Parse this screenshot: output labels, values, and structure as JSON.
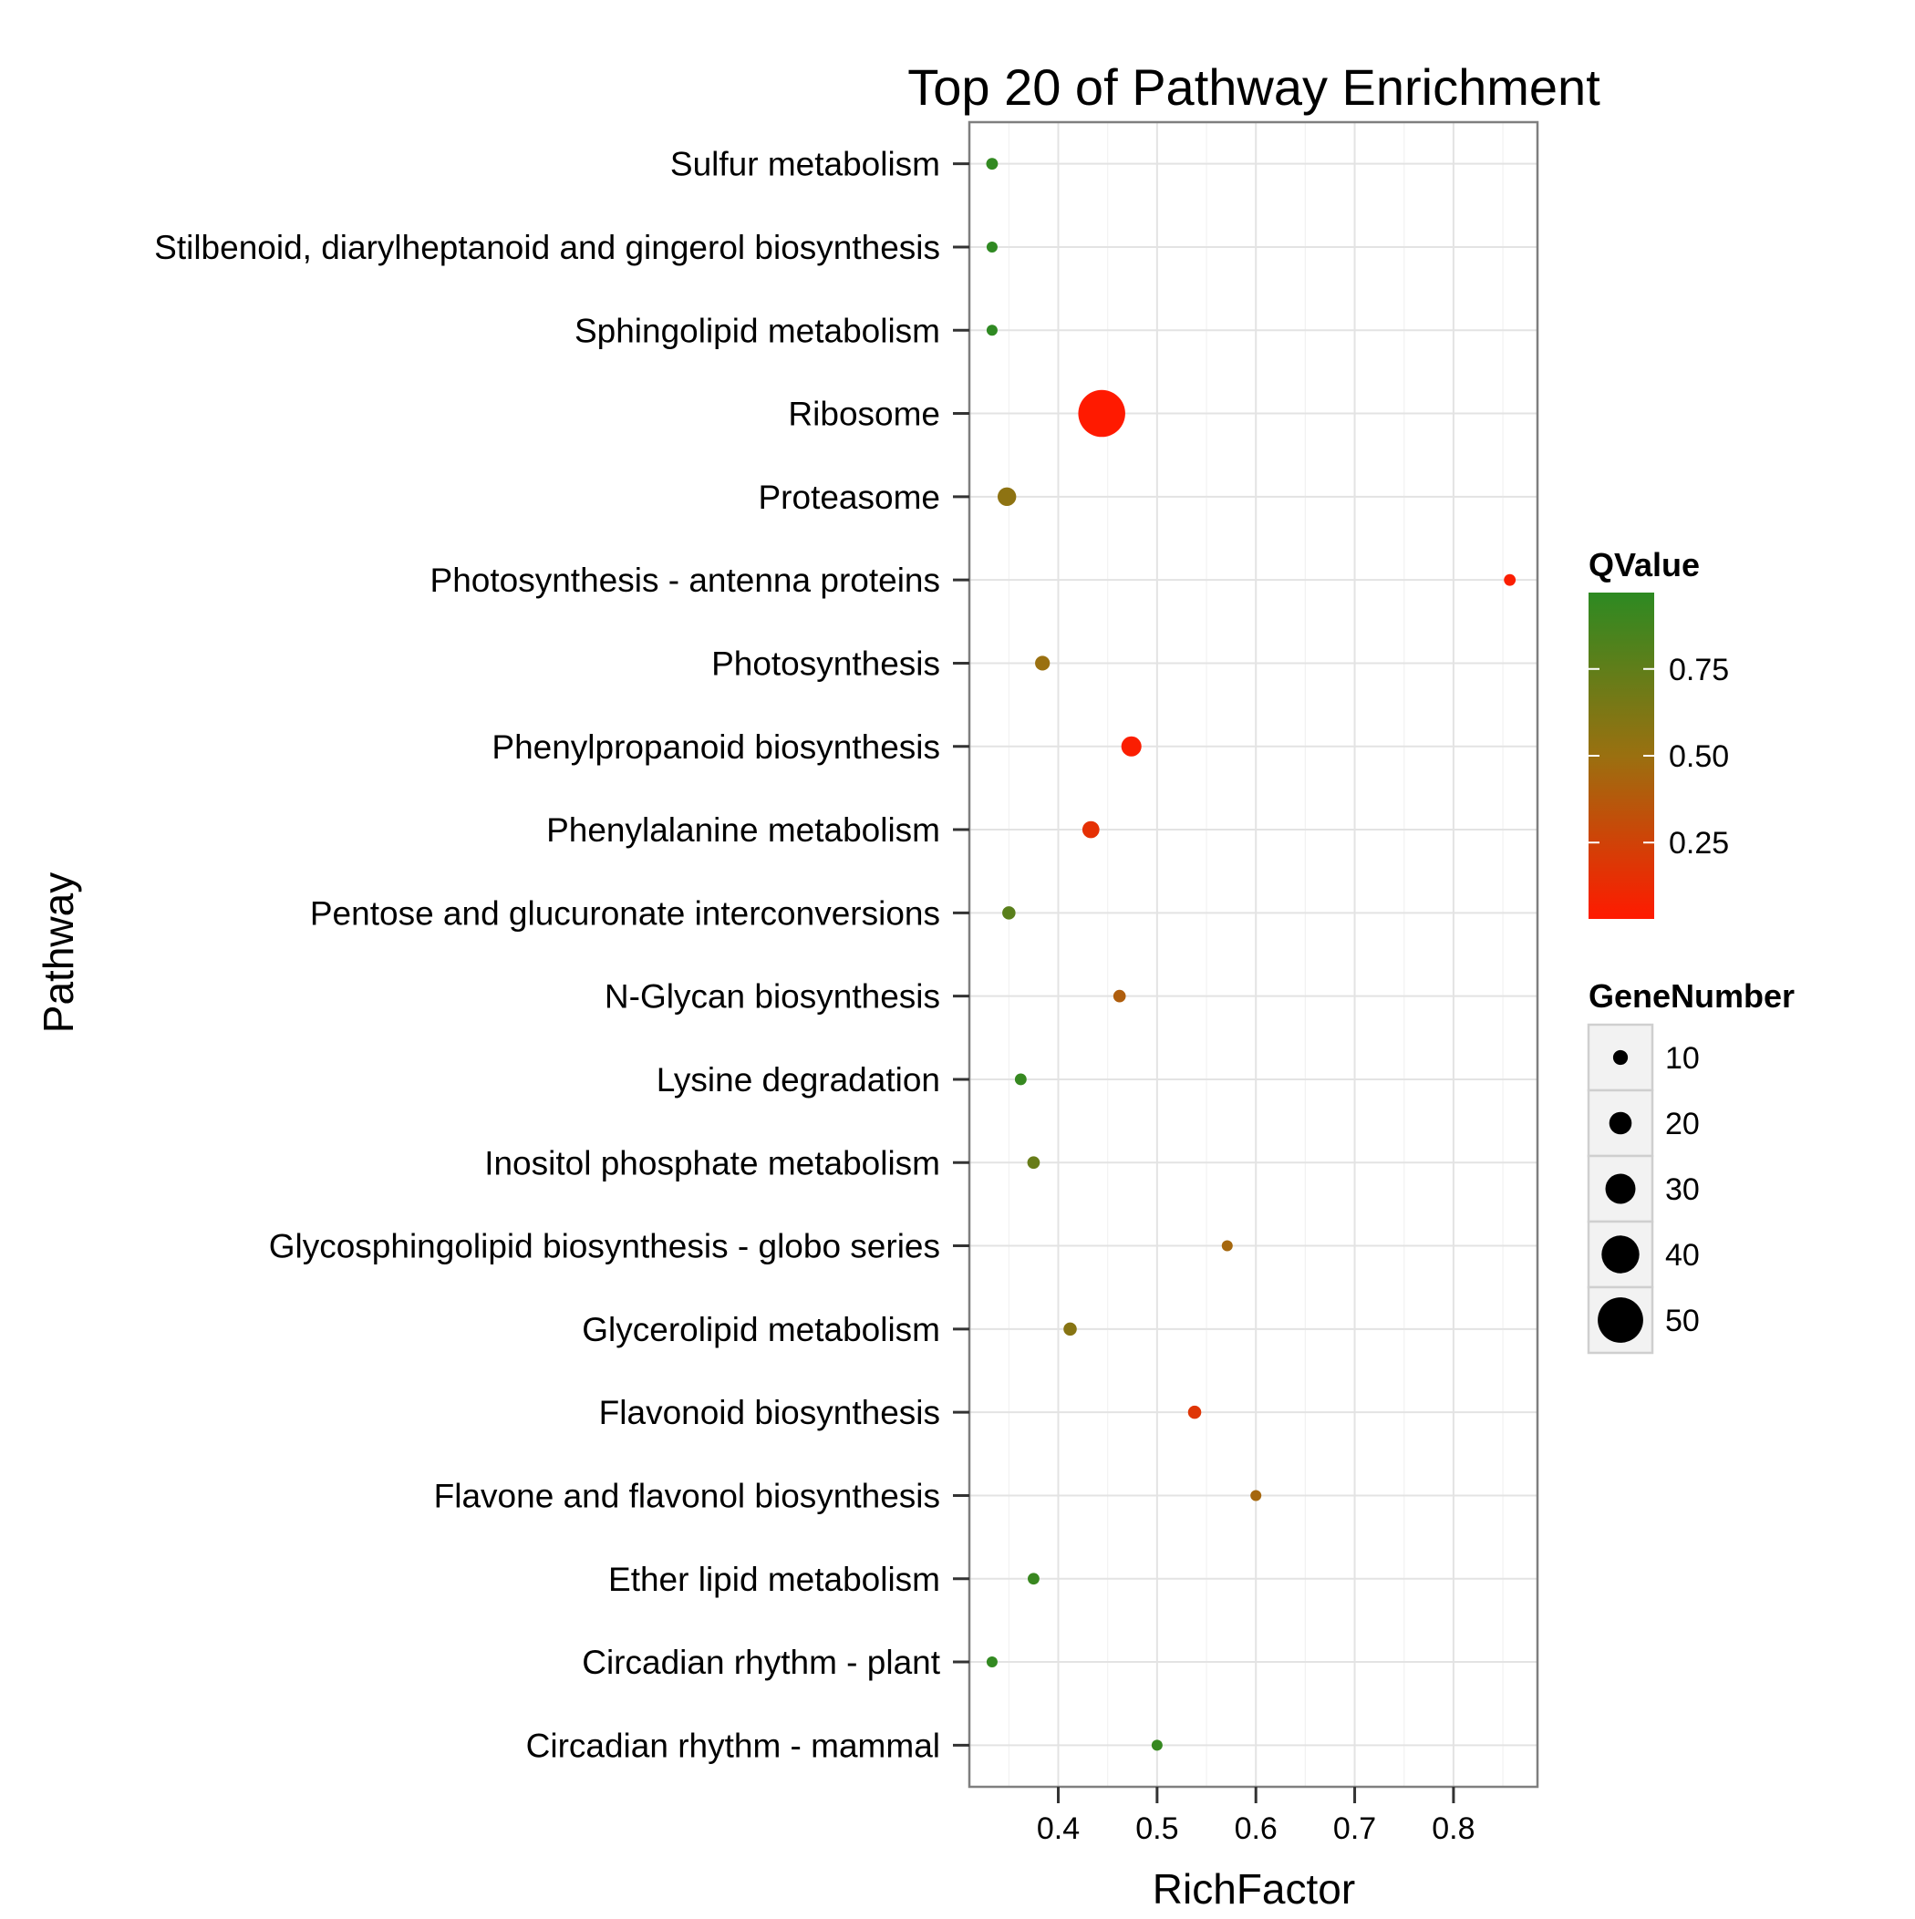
{
  "chart_data": {
    "type": "scatter",
    "title": "Top 20 of Pathway Enrichment",
    "xlabel": "RichFactor",
    "ylabel": "Pathway",
    "xlim": [
      0.31,
      0.885
    ],
    "xticks": [
      "0.4",
      "0.5",
      "0.6",
      "0.7",
      "0.8"
    ],
    "grid": true,
    "legend_position": "right",
    "color_legend": {
      "title": "QValue",
      "range": [
        0.03,
        0.97
      ],
      "low_color": "#ff1a00",
      "mid_color": "#9a7010",
      "high_color": "#2d8a22",
      "ticks": [
        "0.75",
        "0.50",
        "0.25"
      ]
    },
    "size_legend": {
      "title": "GeneNumber",
      "labels": [
        "10",
        "20",
        "30",
        "40",
        "50"
      ],
      "values": [
        10,
        20,
        30,
        40,
        50
      ]
    },
    "points": [
      {
        "pathway": "Sulfur metabolism",
        "x": 0.333,
        "q": 0.95,
        "size": 6
      },
      {
        "pathway": "Stilbenoid, diarylheptanoid and gingerol biosynthesis",
        "x": 0.333,
        "q": 0.96,
        "size": 5
      },
      {
        "pathway": "Sphingolipid metabolism",
        "x": 0.333,
        "q": 0.96,
        "size": 5
      },
      {
        "pathway": "Ribosome",
        "x": 0.444,
        "q": 0.03,
        "size": 52
      },
      {
        "pathway": "Proteasome",
        "x": 0.348,
        "q": 0.55,
        "size": 15
      },
      {
        "pathway": "Photosynthesis - antenna proteins",
        "x": 0.857,
        "q": 0.05,
        "size": 6
      },
      {
        "pathway": "Photosynthesis",
        "x": 0.384,
        "q": 0.5,
        "size": 10
      },
      {
        "pathway": "Phenylpropanoid biosynthesis",
        "x": 0.474,
        "q": 0.05,
        "size": 17
      },
      {
        "pathway": "Phenylalanine metabolism",
        "x": 0.433,
        "q": 0.15,
        "size": 13
      },
      {
        "pathway": "Pentose and glucuronate interconversions",
        "x": 0.35,
        "q": 0.78,
        "size": 8
      },
      {
        "pathway": "N-Glycan biosynthesis",
        "x": 0.462,
        "q": 0.4,
        "size": 7
      },
      {
        "pathway": "Lysine degradation",
        "x": 0.362,
        "q": 0.93,
        "size": 6
      },
      {
        "pathway": "Inositol phosphate metabolism",
        "x": 0.375,
        "q": 0.72,
        "size": 7
      },
      {
        "pathway": "Glycosphingolipid biosynthesis - globo series",
        "x": 0.571,
        "q": 0.45,
        "size": 5
      },
      {
        "pathway": "Glycerolipid metabolism",
        "x": 0.412,
        "q": 0.58,
        "size": 8
      },
      {
        "pathway": "Flavonoid biosynthesis",
        "x": 0.538,
        "q": 0.18,
        "size": 8
      },
      {
        "pathway": "Flavone and flavonol biosynthesis",
        "x": 0.6,
        "q": 0.45,
        "size": 5
      },
      {
        "pathway": "Ether lipid metabolism",
        "x": 0.375,
        "q": 0.92,
        "size": 6
      },
      {
        "pathway": "Circadian rhythm - plant",
        "x": 0.333,
        "q": 0.95,
        "size": 5
      },
      {
        "pathway": "Circadian rhythm - mammal",
        "x": 0.5,
        "q": 0.93,
        "size": 5
      }
    ]
  }
}
